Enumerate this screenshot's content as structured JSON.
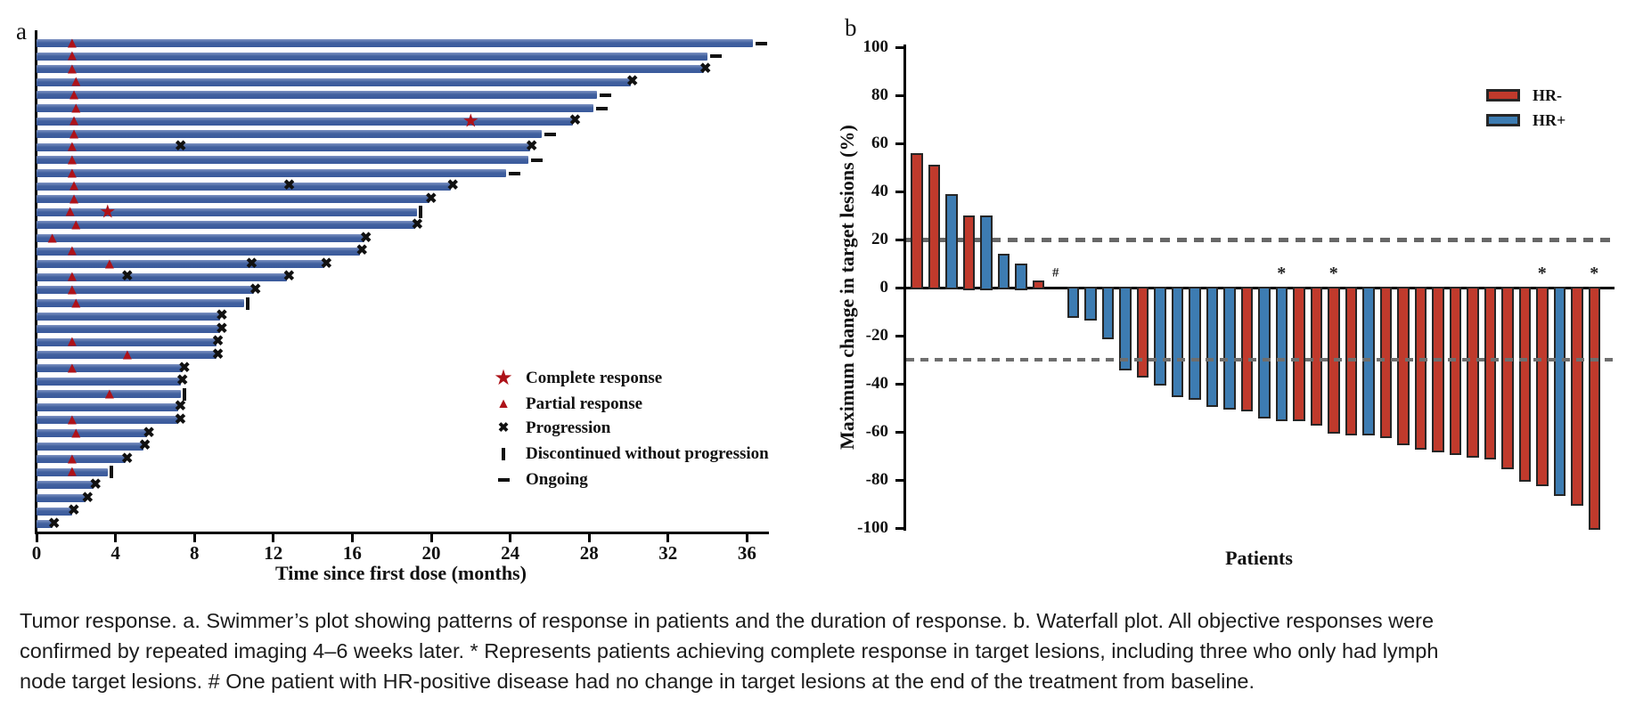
{
  "caption": {
    "line1": "Tumor response. a. Swimmer’s plot showing patterns of response in patients and the duration of response. b. Waterfall plot. All objective responses were",
    "line2": "confirmed by repeated imaging 4–6 weeks later. * Represents patients achieving complete response in target lesions, including three who only had lymph",
    "line3": "node target lesions. # One patient with HR-positive disease had no change in target lesions at the end of the treatment from baseline."
  },
  "chart_data": [
    {
      "id": "swimmer",
      "type": "bar",
      "orientation": "horizontal",
      "panel_label": "a",
      "xlabel": "Time since first dose (months)",
      "x_ticks": [
        0,
        4,
        8,
        12,
        16,
        20,
        24,
        28,
        32,
        36
      ],
      "xlim": [
        0,
        37.5
      ],
      "grid": false,
      "bar_color": "#3a5a9c",
      "marker_red": "#ad1219",
      "marker_black": "#111111",
      "legend": [
        {
          "glyph": "star-icon",
          "label": "Complete response"
        },
        {
          "glyph": "triangle-icon",
          "label": "Partial response"
        },
        {
          "glyph": "x-icon",
          "label": "Progression"
        },
        {
          "glyph": "vbar-icon",
          "label": "Discontinued without progression"
        },
        {
          "glyph": "dash-icon",
          "label": "Ongoing"
        }
      ],
      "bars": [
        {
          "len": 36.3,
          "end": "ongoing",
          "pr": [
            1.8
          ],
          "cr": null,
          "prog": []
        },
        {
          "len": 34.0,
          "end": "ongoing",
          "pr": [
            1.8
          ],
          "cr": null,
          "prog": []
        },
        {
          "len": 33.8,
          "end": "progression",
          "pr": [
            1.8
          ],
          "cr": null,
          "prog": []
        },
        {
          "len": 30.1,
          "end": "progression",
          "pr": [
            2.0
          ],
          "cr": null,
          "prog": []
        },
        {
          "len": 28.4,
          "end": "ongoing",
          "pr": [
            1.9
          ],
          "cr": null,
          "prog": []
        },
        {
          "len": 28.2,
          "end": "ongoing",
          "pr": [
            2.0
          ],
          "cr": null,
          "prog": []
        },
        {
          "len": 27.2,
          "end": "progression",
          "pr": [
            1.9
          ],
          "cr": 22.0,
          "prog": []
        },
        {
          "len": 25.6,
          "end": "ongoing",
          "pr": [
            1.9
          ],
          "cr": null,
          "prog": []
        },
        {
          "len": 25.0,
          "end": "progression",
          "pr": [
            1.8
          ],
          "cr": null,
          "prog": [
            7.3
          ]
        },
        {
          "len": 24.9,
          "end": "ongoing",
          "pr": [
            1.8
          ],
          "cr": null,
          "prog": []
        },
        {
          "len": 23.8,
          "end": "ongoing",
          "pr": [
            1.8
          ],
          "cr": null,
          "prog": []
        },
        {
          "len": 21.0,
          "end": "progression",
          "pr": [
            1.9
          ],
          "cr": null,
          "prog": [
            12.8
          ]
        },
        {
          "len": 19.9,
          "end": "progression",
          "pr": [
            1.9
          ],
          "cr": null,
          "prog": []
        },
        {
          "len": 19.3,
          "end": "discontinued",
          "pr": [
            1.7
          ],
          "cr": 3.6,
          "prog": []
        },
        {
          "len": 19.2,
          "end": "progression",
          "pr": [
            2.0
          ],
          "cr": null,
          "prog": []
        },
        {
          "len": 16.6,
          "end": "progression",
          "pr": [
            0.8
          ],
          "cr": null,
          "prog": []
        },
        {
          "len": 16.4,
          "end": "progression",
          "pr": [
            1.8
          ],
          "cr": null,
          "prog": []
        },
        {
          "len": 14.6,
          "end": "progression",
          "pr": [
            3.7
          ],
          "cr": null,
          "prog": [
            10.9
          ]
        },
        {
          "len": 12.7,
          "end": "progression",
          "pr": [
            1.8
          ],
          "cr": null,
          "prog": [
            4.6
          ]
        },
        {
          "len": 11.0,
          "end": "progression",
          "pr": [
            1.8
          ],
          "cr": null,
          "prog": []
        },
        {
          "len": 10.5,
          "end": "discontinued",
          "pr": [
            2.0
          ],
          "cr": null,
          "prog": []
        },
        {
          "len": 9.3,
          "end": "progression",
          "pr": [],
          "cr": null,
          "prog": []
        },
        {
          "len": 9.3,
          "end": "progression",
          "pr": [],
          "cr": null,
          "prog": []
        },
        {
          "len": 9.1,
          "end": "progression",
          "pr": [
            1.8
          ],
          "cr": null,
          "prog": []
        },
        {
          "len": 9.1,
          "end": "progression",
          "pr": [
            4.6
          ],
          "cr": null,
          "prog": []
        },
        {
          "len": 7.4,
          "end": "progression",
          "pr": [
            1.8
          ],
          "cr": null,
          "prog": []
        },
        {
          "len": 7.3,
          "end": "progression",
          "pr": [],
          "cr": null,
          "prog": []
        },
        {
          "len": 7.3,
          "end": "discontinued",
          "pr": [
            3.7
          ],
          "cr": null,
          "prog": []
        },
        {
          "len": 7.2,
          "end": "progression",
          "pr": [],
          "cr": null,
          "prog": []
        },
        {
          "len": 7.2,
          "end": "progression",
          "pr": [
            1.8
          ],
          "cr": null,
          "prog": []
        },
        {
          "len": 5.6,
          "end": "progression",
          "pr": [
            2.0
          ],
          "cr": null,
          "prog": []
        },
        {
          "len": 5.4,
          "end": "progression",
          "pr": [],
          "cr": null,
          "prog": []
        },
        {
          "len": 4.5,
          "end": "progression",
          "pr": [
            1.8
          ],
          "cr": null,
          "prog": []
        },
        {
          "len": 3.6,
          "end": "discontinued",
          "pr": [
            1.8
          ],
          "cr": null,
          "prog": []
        },
        {
          "len": 2.9,
          "end": "progression",
          "pr": [],
          "cr": null,
          "prog": []
        },
        {
          "len": 2.5,
          "end": "progression",
          "pr": [],
          "cr": null,
          "prog": []
        },
        {
          "len": 1.8,
          "end": "progression",
          "pr": [],
          "cr": null,
          "prog": []
        },
        {
          "len": 0.8,
          "end": "progression",
          "pr": [],
          "cr": null,
          "prog": []
        }
      ]
    },
    {
      "id": "waterfall",
      "type": "bar",
      "panel_label": "b",
      "ylabel": "Maximum change in target lesions (%)",
      "xlabel": "Patients",
      "ylim": [
        -100,
        100
      ],
      "y_ticks": [
        100,
        80,
        60,
        40,
        20,
        0,
        -20,
        -40,
        -60,
        -80,
        -100
      ],
      "reference_lines": [
        20,
        -30
      ],
      "grid": false,
      "legend": [
        {
          "label": "HR-",
          "color": "#c03a2c"
        },
        {
          "label": "HR+",
          "color": "#3d7cb2"
        }
      ],
      "patients": [
        {
          "v": 56,
          "g": "HR-"
        },
        {
          "v": 51,
          "g": "HR-"
        },
        {
          "v": 39,
          "g": "HR+"
        },
        {
          "v": 30,
          "g": "HR-"
        },
        {
          "v": 30,
          "g": "HR+"
        },
        {
          "v": 14,
          "g": "HR+"
        },
        {
          "v": 10,
          "g": "HR+"
        },
        {
          "v": 3,
          "g": "HR-"
        },
        {
          "v": 0,
          "g": "HR+",
          "mark": "#"
        },
        {
          "v": -12,
          "g": "HR+"
        },
        {
          "v": -13,
          "g": "HR+"
        },
        {
          "v": -21,
          "g": "HR+"
        },
        {
          "v": -34,
          "g": "HR+"
        },
        {
          "v": -37,
          "g": "HR-"
        },
        {
          "v": -40,
          "g": "HR+"
        },
        {
          "v": -45,
          "g": "HR+"
        },
        {
          "v": -46,
          "g": "HR+"
        },
        {
          "v": -49,
          "g": "HR+"
        },
        {
          "v": -50,
          "g": "HR+"
        },
        {
          "v": -51,
          "g": "HR-"
        },
        {
          "v": -54,
          "g": "HR+"
        },
        {
          "v": -55,
          "g": "HR+",
          "mark": "*"
        },
        {
          "v": -55,
          "g": "HR-"
        },
        {
          "v": -57,
          "g": "HR-"
        },
        {
          "v": -60,
          "g": "HR-",
          "mark": "*"
        },
        {
          "v": -61,
          "g": "HR-"
        },
        {
          "v": -61,
          "g": "HR+"
        },
        {
          "v": -62,
          "g": "HR-"
        },
        {
          "v": -65,
          "g": "HR-"
        },
        {
          "v": -67,
          "g": "HR-"
        },
        {
          "v": -68,
          "g": "HR-"
        },
        {
          "v": -69,
          "g": "HR-"
        },
        {
          "v": -70,
          "g": "HR-"
        },
        {
          "v": -71,
          "g": "HR-"
        },
        {
          "v": -75,
          "g": "HR-"
        },
        {
          "v": -80,
          "g": "HR-"
        },
        {
          "v": -82,
          "g": "HR-",
          "mark": "*"
        },
        {
          "v": -86,
          "g": "HR+"
        },
        {
          "v": -90,
          "g": "HR-"
        },
        {
          "v": -100,
          "g": "HR-",
          "mark": "*"
        }
      ]
    }
  ]
}
